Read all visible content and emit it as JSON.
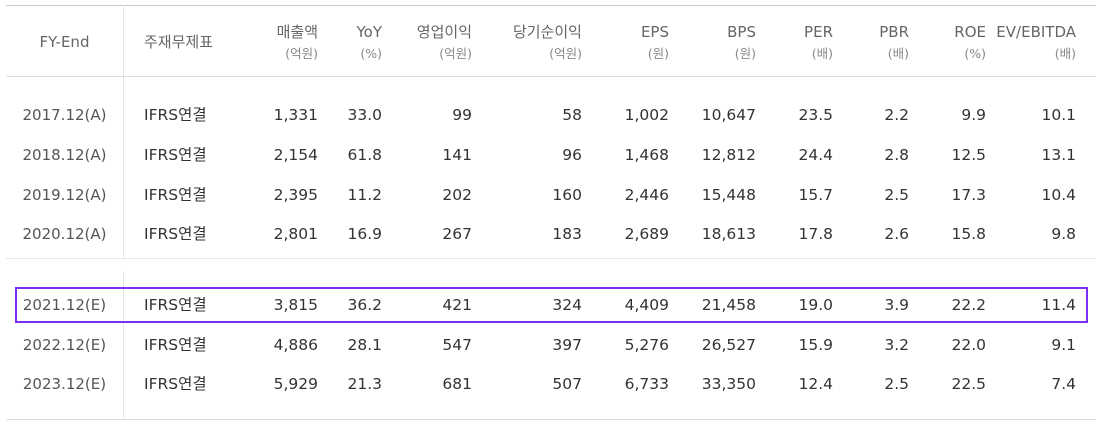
{
  "table": {
    "headers": [
      {
        "label": "FY-End",
        "unit": ""
      },
      {
        "label": "주재무제표",
        "unit": ""
      },
      {
        "label": "매출액",
        "unit": "(억원)"
      },
      {
        "label": "YoY",
        "unit": "(%)"
      },
      {
        "label": "영업이익",
        "unit": "(억원)"
      },
      {
        "label": "당기순이익",
        "unit": "(억원)"
      },
      {
        "label": "EPS",
        "unit": "(원)"
      },
      {
        "label": "BPS",
        "unit": "(원)"
      },
      {
        "label": "PER",
        "unit": "(배)"
      },
      {
        "label": "PBR",
        "unit": "(배)"
      },
      {
        "label": "ROE",
        "unit": "(%)"
      },
      {
        "label": "EV/EBITDA",
        "unit": "(배)"
      }
    ],
    "rows": [
      [
        "2017.12(A)",
        "IFRS연결",
        "1,331",
        "33.0",
        "99",
        "58",
        "1,002",
        "10,647",
        "23.5",
        "2.2",
        "9.9",
        "10.1"
      ],
      [
        "2018.12(A)",
        "IFRS연결",
        "2,154",
        "61.8",
        "141",
        "96",
        "1,468",
        "12,812",
        "24.4",
        "2.8",
        "12.5",
        "13.1"
      ],
      [
        "2019.12(A)",
        "IFRS연결",
        "2,395",
        "11.2",
        "202",
        "160",
        "2,446",
        "15,448",
        "15.7",
        "2.5",
        "17.3",
        "10.4"
      ],
      [
        "2020.12(A)",
        "IFRS연결",
        "2,801",
        "16.9",
        "267",
        "183",
        "2,689",
        "18,613",
        "17.8",
        "2.6",
        "15.8",
        "9.8"
      ],
      [
        "2021.12(E)",
        "IFRS연결",
        "3,815",
        "36.2",
        "421",
        "324",
        "4,409",
        "21,458",
        "19.0",
        "3.9",
        "22.2",
        "11.4"
      ],
      [
        "2022.12(E)",
        "IFRS연결",
        "4,886",
        "28.1",
        "547",
        "397",
        "5,276",
        "26,527",
        "15.9",
        "3.2",
        "22.0",
        "9.1"
      ],
      [
        "2023.12(E)",
        "IFRS연결",
        "5,929",
        "21.3",
        "681",
        "507",
        "6,733",
        "33,350",
        "12.4",
        "2.5",
        "22.5",
        "7.4"
      ]
    ],
    "highlighted_row": "2021.12(E)",
    "highlight_color": "#7a2ff2"
  }
}
